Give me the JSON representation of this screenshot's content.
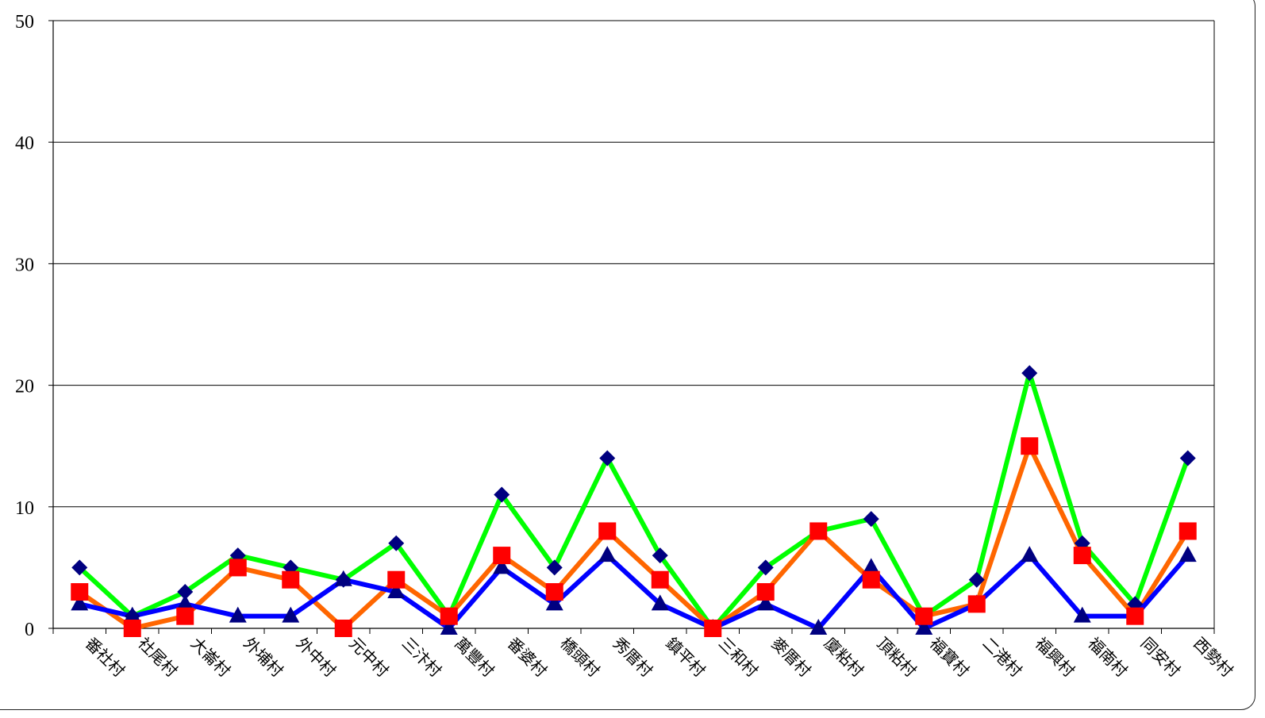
{
  "chart_data": {
    "type": "line",
    "title": "",
    "xlabel": "",
    "ylabel": "",
    "ylim": [
      0,
      50
    ],
    "yticks": [
      0,
      10,
      20,
      30,
      40,
      50
    ],
    "grid": true,
    "legend": "none",
    "categories": [
      "番社村",
      "社尾村",
      "大崙村",
      "外埔村",
      "外中村",
      "元中村",
      "三汴村",
      "萬豐村",
      "番婆村",
      "橋頭村",
      "秀厝村",
      "鎮平村",
      "三和村",
      "麥厝村",
      "廈粘村",
      "頂粘村",
      "福寶村",
      "二港村",
      "福興村",
      "福南村",
      "同安村",
      "西勢村"
    ],
    "series": [
      {
        "color": "#00ff00",
        "marker": "diamond",
        "marker_color": "#000080",
        "values": [
          5,
          1,
          3,
          6,
          5,
          4,
          7,
          1,
          11,
          5,
          14,
          6,
          0,
          5,
          8,
          9,
          1,
          4,
          21,
          7,
          2,
          14
        ]
      },
      {
        "color": "#ff6600",
        "marker": "square",
        "marker_color": "#ff0000",
        "values": [
          3,
          0,
          1,
          5,
          4,
          0,
          4,
          1,
          6,
          3,
          8,
          4,
          0,
          3,
          8,
          4,
          1,
          2,
          15,
          6,
          1,
          8
        ]
      },
      {
        "color": "#0000ff",
        "marker": "triangle",
        "marker_color": "#000080",
        "values": [
          2,
          1,
          2,
          1,
          1,
          4,
          3,
          0,
          5,
          2,
          6,
          2,
          0,
          2,
          0,
          5,
          0,
          2,
          6,
          1,
          1,
          6
        ]
      }
    ]
  }
}
